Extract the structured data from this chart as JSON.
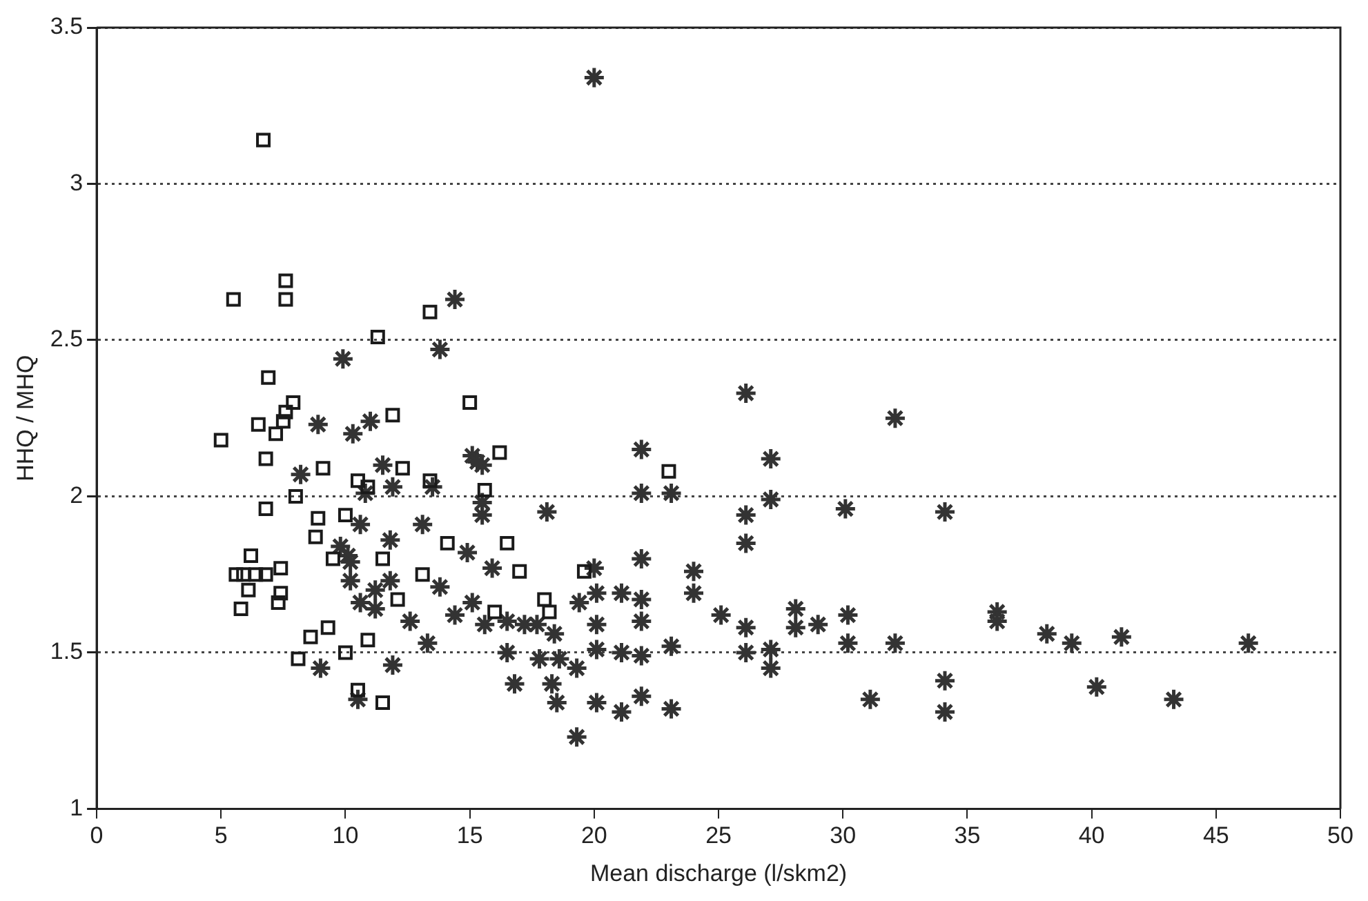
{
  "chart_data": {
    "type": "scatter",
    "xlabel": "Mean discharge (l/skm2)",
    "ylabel": "HHQ / MHQ",
    "xlim": [
      0,
      50
    ],
    "xticks": [
      0,
      5,
      10,
      15,
      20,
      25,
      30,
      35,
      40,
      45,
      50
    ],
    "ylim": [
      1,
      3.5
    ],
    "yticks": [
      1,
      1.5,
      2,
      2.5,
      3,
      3.5
    ],
    "grid": "y",
    "legend": false,
    "series": [
      {
        "color": "#1a1a1a",
        "marker": "square",
        "x": [
          6.7,
          5.5,
          7.6,
          7.6,
          13.4,
          11.3,
          6.9,
          15.0,
          7.9,
          7.6,
          11.9,
          7.5,
          6.5,
          7.2,
          5.0,
          23.0,
          16.2,
          6.8,
          9.1,
          10.5,
          12.3,
          13.4,
          10.9,
          15.6,
          8.0,
          6.8,
          8.9,
          10.0,
          8.8,
          9.5,
          6.2,
          11.5,
          16.5,
          14.1,
          5.6,
          5.9,
          6.4,
          6.8,
          7.4,
          6.1,
          7.4,
          7.3,
          5.8,
          13.1,
          12.1,
          16.0,
          9.3,
          8.6,
          10.9,
          10.0,
          8.1,
          10.5,
          11.5,
          19.6,
          18.0,
          18.2,
          17.0
        ],
        "values": [
          3.14,
          2.63,
          2.69,
          2.63,
          2.59,
          2.51,
          2.38,
          2.3,
          2.3,
          2.27,
          2.26,
          2.24,
          2.23,
          2.2,
          2.18,
          2.08,
          2.14,
          2.12,
          2.09,
          2.05,
          2.09,
          2.05,
          2.03,
          2.02,
          2.0,
          1.96,
          1.93,
          1.94,
          1.87,
          1.8,
          1.81,
          1.8,
          1.85,
          1.85,
          1.75,
          1.75,
          1.75,
          1.75,
          1.77,
          1.7,
          1.69,
          1.66,
          1.64,
          1.75,
          1.67,
          1.63,
          1.58,
          1.55,
          1.54,
          1.5,
          1.48,
          1.38,
          1.34,
          1.76,
          1.67,
          1.63,
          1.76
        ]
      },
      {
        "color": "#333333",
        "marker": "cross",
        "x": [
          20.0,
          14.4,
          9.9,
          13.8,
          8.9,
          10.3,
          11.0,
          15.1,
          15.5,
          8.2,
          11.9,
          10.8,
          13.5,
          11.5,
          15.3,
          15.5,
          15.5,
          10.6,
          13.1,
          11.8,
          9.8,
          10.1,
          14.9,
          10.2,
          15.9,
          10.2,
          11.8,
          11.2,
          13.8,
          10.6,
          11.2,
          12.6,
          14.4,
          15.1,
          15.6,
          13.3,
          9.0,
          11.9,
          10.5,
          16.5,
          26.1,
          21.9,
          27.1,
          21.9,
          23.1,
          27.1,
          18.1,
          26.1,
          30.1,
          26.1,
          21.9,
          24.0,
          24.0,
          20.0,
          20.1,
          21.1,
          21.9,
          25.1,
          21.9,
          20.1,
          28.1,
          29.0,
          30.2,
          28.1,
          30.2,
          26.1,
          26.1,
          27.1,
          23.1,
          20.1,
          21.1,
          21.9,
          27.1,
          19.4,
          18.4,
          17.8,
          18.6,
          19.3,
          16.8,
          18.3,
          18.5,
          20.1,
          21.9,
          21.1,
          23.1,
          19.3,
          31.1,
          16.5,
          17.2,
          17.7,
          32.1,
          34.1,
          36.2,
          36.2,
          38.2,
          39.2,
          41.2,
          46.3,
          32.1,
          34.1,
          34.1,
          40.2,
          43.3
        ],
        "values": [
          3.34,
          2.63,
          2.44,
          2.47,
          2.23,
          2.2,
          2.24,
          2.13,
          2.1,
          2.07,
          2.03,
          2.01,
          2.03,
          2.1,
          2.11,
          1.98,
          1.94,
          1.91,
          1.91,
          1.86,
          1.84,
          1.81,
          1.82,
          1.79,
          1.77,
          1.73,
          1.73,
          1.7,
          1.71,
          1.66,
          1.64,
          1.6,
          1.62,
          1.66,
          1.59,
          1.53,
          1.45,
          1.46,
          1.35,
          1.5,
          2.33,
          2.15,
          2.12,
          2.01,
          2.01,
          1.99,
          1.95,
          1.94,
          1.96,
          1.85,
          1.8,
          1.76,
          1.69,
          1.77,
          1.69,
          1.69,
          1.67,
          1.62,
          1.6,
          1.59,
          1.64,
          1.59,
          1.62,
          1.58,
          1.53,
          1.58,
          1.5,
          1.51,
          1.52,
          1.51,
          1.5,
          1.49,
          1.45,
          1.66,
          1.56,
          1.48,
          1.48,
          1.45,
          1.4,
          1.4,
          1.34,
          1.34,
          1.36,
          1.31,
          1.32,
          1.23,
          1.35,
          1.6,
          1.59,
          1.59,
          2.25,
          1.95,
          1.63,
          1.6,
          1.56,
          1.53,
          1.55,
          1.53,
          1.53,
          1.41,
          1.31,
          1.39,
          1.35
        ]
      }
    ]
  }
}
